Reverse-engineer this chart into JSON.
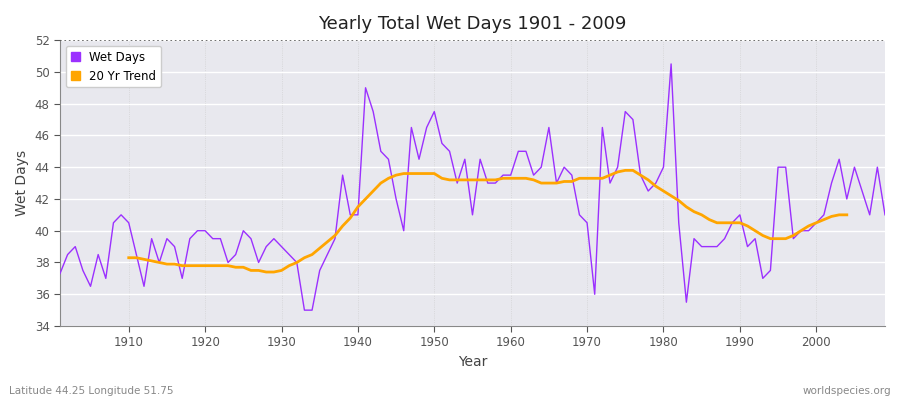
{
  "title": "Yearly Total Wet Days 1901 - 2009",
  "xlabel": "Year",
  "ylabel": "Wet Days",
  "footnote_left": "Latitude 44.25 Longitude 51.75",
  "footnote_right": "worldspecies.org",
  "ylim": [
    34,
    52
  ],
  "xlim": [
    1901,
    2009
  ],
  "yticks": [
    34,
    36,
    38,
    40,
    42,
    44,
    46,
    48,
    50,
    52
  ],
  "xticks": [
    1910,
    1920,
    1930,
    1940,
    1950,
    1960,
    1970,
    1980,
    1990,
    2000
  ],
  "wet_days_color": "#9B30FF",
  "trend_color": "#FFA500",
  "plot_bg_color": "#E8E8EE",
  "fig_bg_color": "#FFFFFF",
  "grid_color_h": "#FFFFFF",
  "grid_color_v": "#CCCCCC",
  "dotted_line_y": 52,
  "wet_days": {
    "1901": 37.3,
    "1902": 38.5,
    "1903": 39.0,
    "1904": 37.5,
    "1905": 36.5,
    "1906": 38.5,
    "1907": 37.0,
    "1908": 40.5,
    "1909": 41.0,
    "1910": 40.5,
    "1911": 38.5,
    "1912": 36.5,
    "1913": 39.5,
    "1914": 38.0,
    "1915": 39.5,
    "1916": 39.0,
    "1917": 37.0,
    "1918": 39.5,
    "1919": 40.0,
    "1920": 40.0,
    "1921": 39.5,
    "1922": 39.5,
    "1923": 38.0,
    "1924": 38.5,
    "1925": 40.0,
    "1926": 39.5,
    "1927": 38.0,
    "1928": 39.0,
    "1929": 39.5,
    "1930": 39.0,
    "1931": 38.5,
    "1932": 38.0,
    "1933": 35.0,
    "1934": 35.0,
    "1935": 37.5,
    "1936": 38.5,
    "1937": 39.5,
    "1938": 43.5,
    "1939": 41.0,
    "1940": 41.0,
    "1941": 49.0,
    "1942": 47.5,
    "1943": 45.0,
    "1944": 44.5,
    "1945": 42.0,
    "1946": 40.0,
    "1947": 46.5,
    "1948": 44.5,
    "1949": 46.5,
    "1950": 47.5,
    "1951": 45.5,
    "1952": 45.0,
    "1953": 43.0,
    "1954": 44.5,
    "1955": 41.0,
    "1956": 44.5,
    "1957": 43.0,
    "1958": 43.0,
    "1959": 43.5,
    "1960": 43.5,
    "1961": 45.0,
    "1962": 45.0,
    "1963": 43.5,
    "1964": 44.0,
    "1965": 46.5,
    "1966": 43.0,
    "1967": 44.0,
    "1968": 43.5,
    "1969": 41.0,
    "1970": 40.5,
    "1971": 36.0,
    "1972": 46.5,
    "1973": 43.0,
    "1974": 44.0,
    "1975": 47.5,
    "1976": 47.0,
    "1977": 43.5,
    "1978": 42.5,
    "1979": 43.0,
    "1980": 44.0,
    "1981": 50.5,
    "1982": 40.5,
    "1983": 35.5,
    "1984": 39.5,
    "1985": 39.0,
    "1986": 39.0,
    "1987": 39.0,
    "1988": 39.5,
    "1989": 40.5,
    "1990": 41.0,
    "1991": 39.0,
    "1992": 39.5,
    "1993": 37.0,
    "1994": 37.5,
    "1995": 44.0,
    "1996": 44.0,
    "1997": 39.5,
    "1998": 40.0,
    "1999": 40.0,
    "2000": 40.5,
    "2001": 41.0,
    "2002": 43.0,
    "2003": 44.5,
    "2004": 42.0,
    "2005": 44.0,
    "2006": 42.5,
    "2007": 41.0,
    "2008": 44.0,
    "2009": 41.0
  },
  "trend_20yr": {
    "1910": 38.3,
    "1911": 38.3,
    "1912": 38.2,
    "1913": 38.1,
    "1914": 38.0,
    "1915": 37.9,
    "1916": 37.9,
    "1917": 37.8,
    "1918": 37.8,
    "1919": 37.8,
    "1920": 37.8,
    "1921": 37.8,
    "1922": 37.8,
    "1923": 37.8,
    "1924": 37.7,
    "1925": 37.7,
    "1926": 37.5,
    "1927": 37.5,
    "1928": 37.4,
    "1929": 37.4,
    "1930": 37.5,
    "1931": 37.8,
    "1932": 38.0,
    "1933": 38.3,
    "1934": 38.5,
    "1935": 38.9,
    "1936": 39.3,
    "1937": 39.7,
    "1938": 40.3,
    "1939": 40.8,
    "1940": 41.5,
    "1941": 42.0,
    "1942": 42.5,
    "1943": 43.0,
    "1944": 43.3,
    "1945": 43.5,
    "1946": 43.6,
    "1947": 43.6,
    "1948": 43.6,
    "1949": 43.6,
    "1950": 43.6,
    "1951": 43.3,
    "1952": 43.2,
    "1953": 43.2,
    "1954": 43.2,
    "1955": 43.2,
    "1956": 43.2,
    "1957": 43.2,
    "1958": 43.2,
    "1959": 43.3,
    "1960": 43.3,
    "1961": 43.3,
    "1962": 43.3,
    "1963": 43.2,
    "1964": 43.0,
    "1965": 43.0,
    "1966": 43.0,
    "1967": 43.1,
    "1968": 43.1,
    "1969": 43.3,
    "1970": 43.3,
    "1971": 43.3,
    "1972": 43.3,
    "1973": 43.5,
    "1974": 43.7,
    "1975": 43.8,
    "1976": 43.8,
    "1977": 43.5,
    "1978": 43.2,
    "1979": 42.8,
    "1980": 42.5,
    "1981": 42.2,
    "1982": 41.9,
    "1983": 41.5,
    "1984": 41.2,
    "1985": 41.0,
    "1986": 40.7,
    "1987": 40.5,
    "1988": 40.5,
    "1989": 40.5,
    "1990": 40.5,
    "1991": 40.3,
    "1992": 40.0,
    "1993": 39.7,
    "1994": 39.5,
    "1995": 39.5,
    "1996": 39.5,
    "1997": 39.7,
    "1998": 40.0,
    "1999": 40.3,
    "2000": 40.5,
    "2001": 40.7,
    "2002": 40.9,
    "2003": 41.0,
    "2004": 41.0
  }
}
